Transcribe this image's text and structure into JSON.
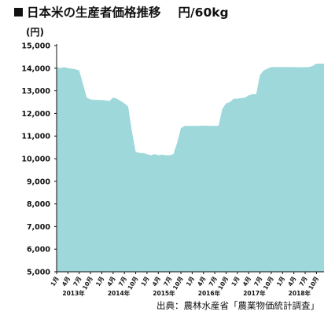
{
  "header": {
    "title": "日本米の生産者価格推移",
    "unit": "円/60kg",
    "y_unit": "(円)"
  },
  "source": "出典：農林水産省「農業物価統計調査」",
  "colors": {
    "area_fill": "#9fd8da",
    "axis": "#111111"
  },
  "chart_data": {
    "type": "area",
    "title": "日本米の生産者価格推移 円/60kg",
    "ylabel": "(円)",
    "xlabel": "",
    "ylim": [
      5000,
      15000
    ],
    "yticks": [
      5000,
      6000,
      7000,
      8000,
      9000,
      10000,
      11000,
      12000,
      13000,
      14000,
      15000
    ],
    "xtick_labels": [
      "1月",
      "4月",
      "7月",
      "10月",
      "1月",
      "4月",
      "7月",
      "10月",
      "1月",
      "4月",
      "7月",
      "10月",
      "1月",
      "4月",
      "7月",
      "10月",
      "1月",
      "4月",
      "7月",
      "10月",
      "1月",
      "4月",
      "7月",
      "10月"
    ],
    "year_labels": [
      "2013年",
      "2014年",
      "2015年",
      "2016年",
      "2017年",
      "2018年"
    ],
    "grid": false,
    "x": [
      "2013-01",
      "2013-02",
      "2013-03",
      "2013-04",
      "2013-05",
      "2013-06",
      "2013-07",
      "2013-08",
      "2013-09",
      "2013-10",
      "2013-11",
      "2013-12",
      "2014-01",
      "2014-02",
      "2014-03",
      "2014-04",
      "2014-05",
      "2014-06",
      "2014-07",
      "2014-08",
      "2014-09",
      "2014-10",
      "2014-11",
      "2014-12",
      "2015-01",
      "2015-02",
      "2015-03",
      "2015-04",
      "2015-05",
      "2015-06",
      "2015-07",
      "2015-08",
      "2015-09",
      "2015-10",
      "2015-11",
      "2015-12",
      "2016-01",
      "2016-02",
      "2016-03",
      "2016-04",
      "2016-05",
      "2016-06",
      "2016-07",
      "2016-08",
      "2016-09",
      "2016-10",
      "2016-11",
      "2016-12",
      "2017-01",
      "2017-02",
      "2017-03",
      "2017-04",
      "2017-05",
      "2017-06",
      "2017-07",
      "2017-08",
      "2017-09",
      "2017-10",
      "2017-11",
      "2017-12",
      "2018-01",
      "2018-02",
      "2018-03",
      "2018-04",
      "2018-05",
      "2018-06",
      "2018-07",
      "2018-08",
      "2018-09",
      "2018-10",
      "2018-11",
      "2018-12"
    ],
    "series": [
      {
        "values": [
          14050,
          14000,
          14050,
          14000,
          13980,
          13950,
          13900,
          13300,
          12700,
          12620,
          12600,
          12600,
          12590,
          12580,
          12550,
          12700,
          12650,
          12550,
          12450,
          12300,
          11200,
          10300,
          10250,
          10250,
          10200,
          10150,
          10200,
          10150,
          10180,
          10150,
          10150,
          10200,
          10700,
          11350,
          11450,
          11450,
          11450,
          11450,
          11450,
          11460,
          11460,
          11450,
          11450,
          11460,
          12200,
          12450,
          12500,
          12650,
          12650,
          12680,
          12700,
          12800,
          12850,
          12850,
          13700,
          13900,
          13980,
          14050,
          14050,
          14050,
          14050,
          14050,
          14050,
          14050,
          14040,
          14040,
          14050,
          14050,
          14100,
          14200,
          14200,
          14200
        ]
      }
    ]
  }
}
